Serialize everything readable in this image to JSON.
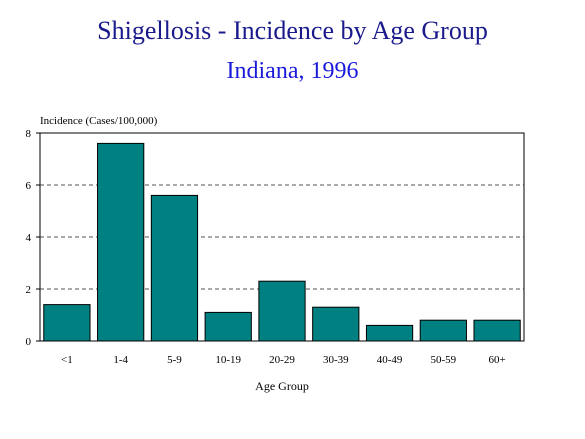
{
  "chart_data": {
    "type": "bar",
    "title": "Shigellosis - Incidence by Age Group",
    "subtitle": "Indiana, 1996",
    "xlabel": "Age Group",
    "ylabel": "Incidence (Cases/100,000)",
    "categories": [
      "<1",
      "1-4",
      "5-9",
      "10-19",
      "20-29",
      "30-39",
      "40-49",
      "50-59",
      "60+"
    ],
    "values": [
      1.4,
      7.6,
      5.6,
      1.1,
      2.3,
      1.3,
      0.6,
      0.8,
      0.8
    ],
    "ylim": [
      0,
      8
    ],
    "yticks": [
      0,
      2,
      4,
      6,
      8
    ],
    "grid": true,
    "colors": {
      "bar": "#008080",
      "bar_stroke": "#000000",
      "grid": "#555555",
      "title": "#1a1a8c",
      "subtitle": "#1a1adb"
    }
  }
}
